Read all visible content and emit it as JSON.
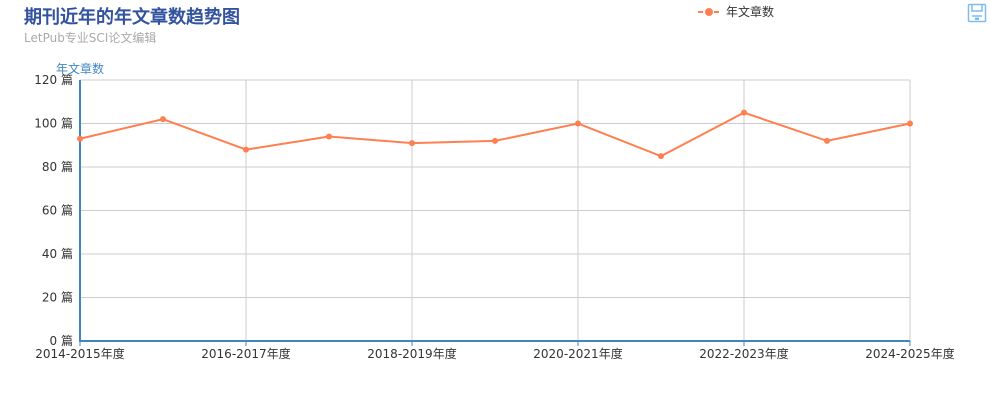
{
  "header": {
    "title": "期刊近年的年文章数趋势图",
    "subtitle": "LetPub专业SCI论文编辑"
  },
  "toolbox": {
    "save_icon": "save-icon"
  },
  "colors": {
    "title": "#33539e",
    "series": "#ff7f50",
    "axis": "#3f86c3",
    "grid": "#cccccc"
  },
  "chart_data": {
    "type": "line",
    "title": "期刊近年的年文章数趋势图",
    "subtitle": "LetPub专业SCI论文编辑",
    "ylabel": "年文章数",
    "ylim": [
      0,
      120
    ],
    "y_ticks": [
      0,
      20,
      40,
      60,
      80,
      100,
      120
    ],
    "y_unit": " 篇",
    "x_tick_labels": [
      "2014-2015年度",
      "2016-2017年度",
      "2018-2019年度",
      "2020-2021年度",
      "2022-2023年度",
      "2024-2025年度"
    ],
    "grid": true,
    "legend_position": "top-right",
    "series": [
      {
        "name": "年文章数",
        "color": "#ff7f50",
        "values": [
          93,
          102,
          88,
          94,
          91,
          92,
          100,
          85,
          105,
          92,
          100
        ]
      }
    ]
  }
}
